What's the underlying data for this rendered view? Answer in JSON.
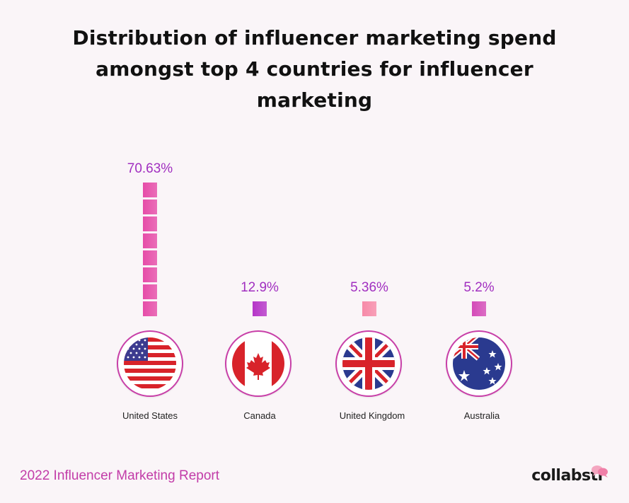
{
  "chart_data": {
    "type": "bar",
    "title": "Distribution of influencer marketing spend amongst top 4 countries for influencer marketing",
    "categories": [
      "United States",
      "Canada",
      "United Kingdom",
      "Australia"
    ],
    "values": [
      70.63,
      12.9,
      5.36,
      5.2
    ],
    "value_labels": [
      "70.63%",
      "12.9%",
      "5.36%",
      "5.2%"
    ],
    "unit": "%",
    "colors": [
      "#e64ca8",
      "#b535c8",
      "#f78aa8",
      "#d44bb8"
    ],
    "legend": "none",
    "grid": false
  },
  "flags": {
    "united_states": "us-flag-icon",
    "canada": "canada-flag-icon",
    "united_kingdom": "uk-flag-icon",
    "australia": "australia-flag-icon"
  },
  "footer": {
    "report": "2022 Influencer Marketing Report",
    "brand": "collabstr"
  }
}
